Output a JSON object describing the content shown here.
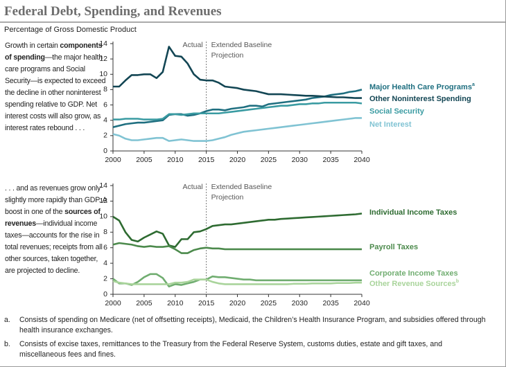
{
  "header": {
    "title": "Federal Debt, Spending, and Revenues",
    "subtitle": "Percentage of Gross Domestic Product"
  },
  "side_text": [
    [
      {
        "text": "Growth in certain "
      },
      {
        "text": "components of spending",
        "bold": true
      },
      {
        "text": "—the major health care programs and Social Security—is expected to exceed the decline in other noninterest spending relative to GDP. Net interest costs will also grow, as interest rates rebound . . ."
      }
    ],
    [
      {
        "text": ". . . and as revenues grow only slightly more rapidly than GDP. A boost in one of the "
      },
      {
        "text": "sources of revenues",
        "bold": true
      },
      {
        "text": "—individual income taxes—accounts for the rise in total revenues; receipts from all other sources, taken together, are projected to decline."
      }
    ]
  ],
  "footnotes": [
    {
      "marker": "a.",
      "text": "Consists of spending on Medicare (net of offsetting receipts), Medicaid, the Children’s Health Insurance Program, and subsidies offered through health insurance exchanges."
    },
    {
      "marker": "b.",
      "text": "Consists of excise taxes, remittances to the Treasury from the Federal Reserve System, customs duties, estate and gift taxes, and miscellaneous fees and fines."
    }
  ],
  "chart_data": [
    {
      "type": "line",
      "x": [
        2000,
        2001,
        2002,
        2003,
        2004,
        2005,
        2006,
        2007,
        2008,
        2009,
        2010,
        2011,
        2012,
        2013,
        2014,
        2015,
        2016,
        2017,
        2018,
        2019,
        2020,
        2021,
        2022,
        2023,
        2024,
        2025,
        2026,
        2027,
        2028,
        2029,
        2030,
        2031,
        2032,
        2033,
        2034,
        2035,
        2036,
        2037,
        2038,
        2039,
        2040
      ],
      "xlim": [
        2000,
        2040
      ],
      "xticks": [
        2000,
        2005,
        2010,
        2015,
        2020,
        2025,
        2030,
        2035,
        2040
      ],
      "ylim": [
        0,
        14
      ],
      "yticks": [
        0,
        2,
        4,
        6,
        8,
        10,
        12,
        14
      ],
      "projection_start": 2015,
      "actual_label": "Actual",
      "projection_label": [
        "Extended Baseline",
        "Projection"
      ],
      "series": [
        {
          "name": "Major Health Care Programs",
          "footnote": "a",
          "color": "#1f6f80",
          "values": [
            3.1,
            3.3,
            3.5,
            3.6,
            3.7,
            3.7,
            3.8,
            3.9,
            4.0,
            4.7,
            4.8,
            4.8,
            4.6,
            4.7,
            4.9,
            5.2,
            5.4,
            5.4,
            5.3,
            5.5,
            5.6,
            5.7,
            5.9,
            5.9,
            5.8,
            6.1,
            6.2,
            6.3,
            6.4,
            6.5,
            6.6,
            6.7,
            6.9,
            7.0,
            7.1,
            7.3,
            7.4,
            7.5,
            7.7,
            7.8,
            8.0
          ]
        },
        {
          "name": "Other Noninterest Spending",
          "color": "#134654",
          "values": [
            8.4,
            8.4,
            9.2,
            9.9,
            9.9,
            10.0,
            10.0,
            9.5,
            10.3,
            13.6,
            12.4,
            12.3,
            11.4,
            10.0,
            9.3,
            9.2,
            9.2,
            8.9,
            8.4,
            8.3,
            8.2,
            8.0,
            7.9,
            7.8,
            7.6,
            7.4,
            7.4,
            7.4,
            7.35,
            7.3,
            7.25,
            7.2,
            7.2,
            7.15,
            7.1,
            7.05,
            7.0,
            7.0,
            6.95,
            6.9,
            6.9
          ]
        },
        {
          "name": "Social Security",
          "color": "#3a9ba2",
          "values": [
            4.1,
            4.1,
            4.2,
            4.2,
            4.2,
            4.1,
            4.1,
            4.1,
            4.2,
            4.8,
            4.8,
            4.7,
            4.8,
            4.9,
            4.9,
            4.9,
            4.9,
            4.9,
            5.0,
            5.1,
            5.2,
            5.3,
            5.4,
            5.5,
            5.6,
            5.7,
            5.8,
            5.9,
            5.9,
            6.0,
            6.1,
            6.1,
            6.2,
            6.2,
            6.3,
            6.3,
            6.3,
            6.3,
            6.3,
            6.3,
            6.2
          ]
        },
        {
          "name": "Net Interest",
          "color": "#80c3d3",
          "values": [
            2.2,
            2.0,
            1.6,
            1.4,
            1.4,
            1.5,
            1.6,
            1.7,
            1.7,
            1.3,
            1.4,
            1.5,
            1.4,
            1.3,
            1.3,
            1.3,
            1.4,
            1.6,
            1.8,
            2.1,
            2.3,
            2.5,
            2.6,
            2.7,
            2.8,
            2.9,
            3.0,
            3.1,
            3.2,
            3.3,
            3.4,
            3.5,
            3.6,
            3.7,
            3.8,
            3.9,
            4.0,
            4.1,
            4.2,
            4.3,
            4.3
          ]
        }
      ]
    },
    {
      "type": "line",
      "x": [
        2000,
        2001,
        2002,
        2003,
        2004,
        2005,
        2006,
        2007,
        2008,
        2009,
        2010,
        2011,
        2012,
        2013,
        2014,
        2015,
        2016,
        2017,
        2018,
        2019,
        2020,
        2021,
        2022,
        2023,
        2024,
        2025,
        2026,
        2027,
        2028,
        2029,
        2030,
        2031,
        2032,
        2033,
        2034,
        2035,
        2036,
        2037,
        2038,
        2039,
        2040
      ],
      "xlim": [
        2000,
        2040
      ],
      "xticks": [
        2000,
        2005,
        2010,
        2015,
        2020,
        2025,
        2030,
        2035,
        2040
      ],
      "ylim": [
        0,
        14
      ],
      "yticks": [
        0,
        2,
        4,
        6,
        8,
        10,
        12,
        14
      ],
      "projection_start": 2015,
      "actual_label": "Actual",
      "projection_label": [
        "Extended Baseline",
        "Projection"
      ],
      "series": [
        {
          "name": "Individual Income Taxes",
          "color": "#2e6b31",
          "values": [
            10.0,
            9.5,
            8.0,
            7.0,
            6.8,
            7.3,
            7.7,
            8.1,
            7.8,
            6.3,
            6.1,
            7.1,
            7.1,
            8.0,
            8.1,
            8.4,
            8.8,
            8.9,
            9.0,
            9.0,
            9.1,
            9.2,
            9.3,
            9.4,
            9.5,
            9.6,
            9.6,
            9.7,
            9.75,
            9.8,
            9.85,
            9.9,
            9.95,
            10.0,
            10.05,
            10.1,
            10.15,
            10.2,
            10.25,
            10.3,
            10.4
          ]
        },
        {
          "name": "Payroll Taxes",
          "color": "#4c8a4c",
          "values": [
            6.4,
            6.6,
            6.5,
            6.4,
            6.2,
            6.1,
            6.2,
            6.1,
            6.1,
            6.2,
            5.8,
            5.3,
            5.3,
            5.7,
            5.9,
            6.0,
            5.9,
            5.9,
            5.8,
            5.8,
            5.8,
            5.8,
            5.8,
            5.8,
            5.8,
            5.8,
            5.8,
            5.8,
            5.8,
            5.8,
            5.8,
            5.8,
            5.8,
            5.8,
            5.8,
            5.8,
            5.8,
            5.8,
            5.8,
            5.8,
            5.8
          ]
        },
        {
          "name": "Corporate Income Taxes",
          "color": "#70ad70",
          "values": [
            2.0,
            1.4,
            1.4,
            1.2,
            1.6,
            2.2,
            2.6,
            2.6,
            2.1,
            1.0,
            1.3,
            1.2,
            1.4,
            1.6,
            1.9,
            1.9,
            2.3,
            2.2,
            2.2,
            2.1,
            2.0,
            1.9,
            1.9,
            1.8,
            1.8,
            1.8,
            1.8,
            1.8,
            1.8,
            1.8,
            1.8,
            1.8,
            1.8,
            1.8,
            1.8,
            1.8,
            1.8,
            1.8,
            1.8,
            1.8,
            1.8
          ]
        },
        {
          "name": "Other Revenue Sources",
          "footnote": "b",
          "color": "#a9d49b",
          "values": [
            1.7,
            1.5,
            1.4,
            1.3,
            1.3,
            1.3,
            1.3,
            1.3,
            1.3,
            1.3,
            1.5,
            1.5,
            1.6,
            1.9,
            1.9,
            1.9,
            1.6,
            1.4,
            1.3,
            1.3,
            1.3,
            1.3,
            1.3,
            1.3,
            1.3,
            1.3,
            1.3,
            1.3,
            1.3,
            1.35,
            1.35,
            1.35,
            1.4,
            1.4,
            1.4,
            1.4,
            1.45,
            1.45,
            1.45,
            1.5,
            1.5
          ]
        }
      ]
    }
  ]
}
